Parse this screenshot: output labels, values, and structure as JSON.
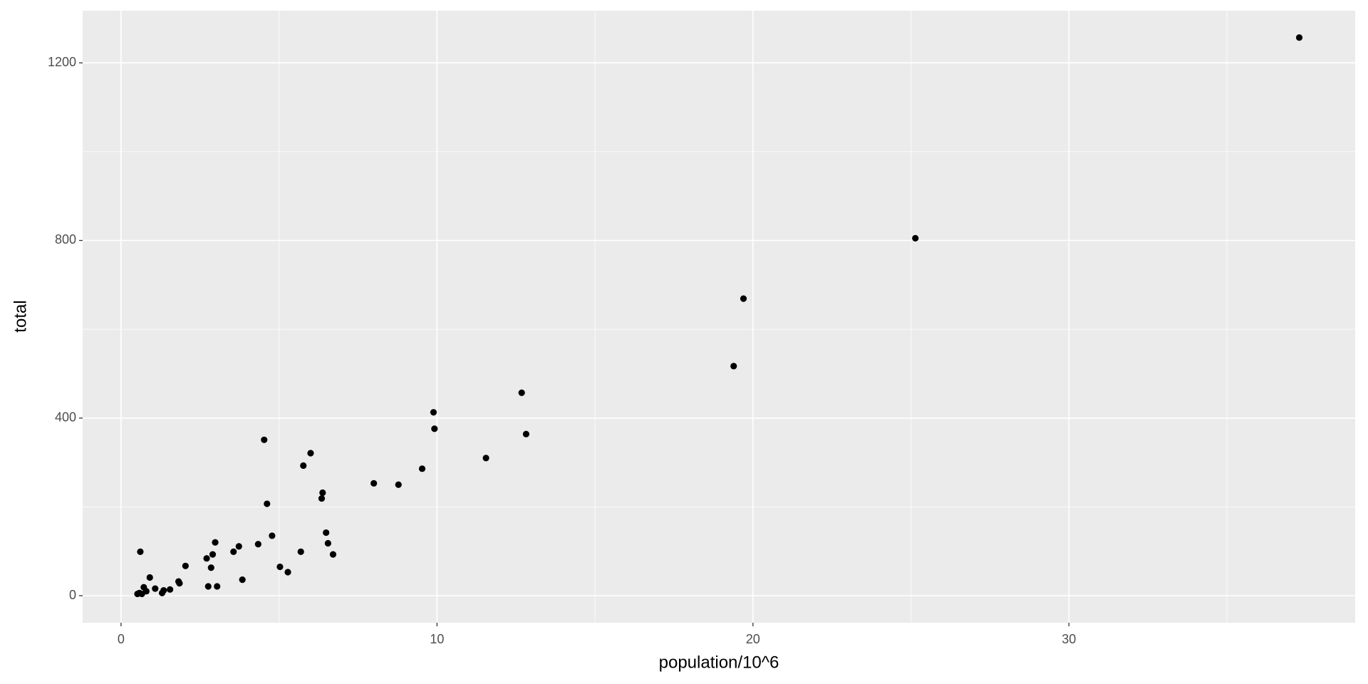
{
  "chart_data": {
    "type": "scatter",
    "xlabel": "population/10^6",
    "ylabel": "total",
    "x": [
      37.29,
      25.14,
      19.7,
      19.39,
      12.68,
      12.82,
      9.89,
      9.92,
      11.55,
      9.53,
      8.78,
      8.0,
      4.53,
      6.0,
      5.77,
      6.38,
      6.35,
      4.62,
      4.78,
      6.49,
      6.55,
      6.71,
      5.69,
      4.34,
      3.73,
      3.56,
      5.03,
      5.28,
      3.84,
      2.98,
      2.9,
      2.71,
      2.85,
      2.76,
      3.04,
      2.04,
      1.82,
      1.85,
      0.61,
      0.91,
      1.08,
      0.72,
      1.55,
      1.35,
      1.3,
      0.8,
      0.58,
      0.66,
      0.52
    ],
    "values": [
      1257,
      805,
      669,
      517,
      457,
      364,
      413,
      376,
      310,
      286,
      250,
      253,
      351,
      321,
      293,
      232,
      219,
      207,
      135,
      142,
      118,
      93,
      99,
      116,
      111,
      99,
      65,
      53,
      36,
      120,
      93,
      84,
      63,
      21,
      21,
      67,
      32,
      28,
      99,
      41,
      16,
      19,
      14,
      12,
      6,
      10,
      6,
      4,
      4
    ],
    "color": "#000000",
    "xlim": [
      -1.215,
      39.06
    ],
    "ylim": [
      -60.9,
      1317.5
    ],
    "xticks": [
      0,
      10,
      20,
      30
    ],
    "yticks": [
      0,
      400,
      800,
      1200
    ],
    "xminor": [
      5,
      15,
      25,
      35
    ],
    "yminor": [
      200,
      600,
      1000
    ],
    "grid": true
  }
}
